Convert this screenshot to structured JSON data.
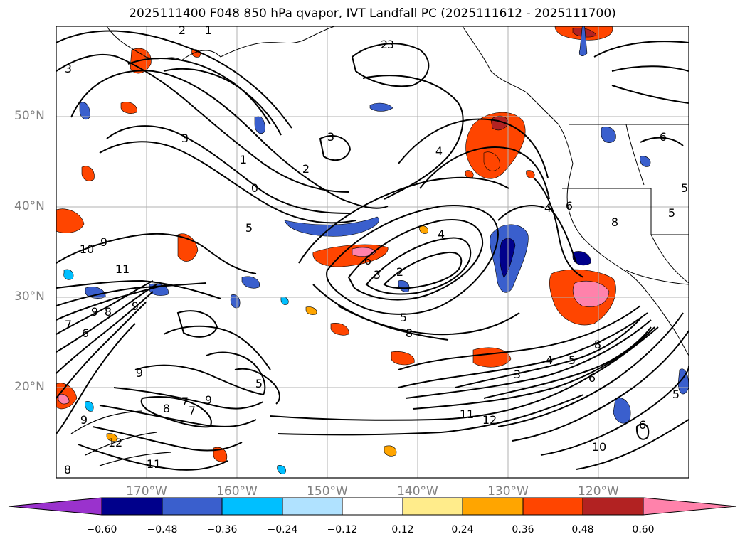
{
  "title": "2025111400 F048 850 hPa qvapor, IVT Landfall PC (2025111612 - 2025111700)",
  "lat_labels": [
    "50°N",
    "40°N",
    "30°N",
    "20°N"
  ],
  "lon_labels": [
    "170°W",
    "160°W",
    "150°W",
    "140°W",
    "130°W",
    "120°W"
  ],
  "colorbar": {
    "ticks": [
      "−0.60",
      "−0.48",
      "−0.36",
      "−0.24",
      "−0.12",
      "0.12",
      "0.24",
      "0.36",
      "0.48",
      "0.60"
    ],
    "colors": [
      "#9a32cd",
      "#00008b",
      "#3a5fcd",
      "#00bfff",
      "#b0e2ff",
      "#ffffff",
      "#ffec8b",
      "#ffa500",
      "#ff4500",
      "#b22222",
      "#ff82ab"
    ]
  },
  "contour_labels": [
    "3",
    "2",
    "1",
    "3",
    "2",
    "3",
    "1",
    "0",
    "2",
    "3",
    "4",
    "5",
    "6",
    "4",
    "5",
    "3",
    "2",
    "6",
    "9",
    "10",
    "11",
    "9",
    "8",
    "7",
    "6",
    "9",
    "12",
    "11",
    "8",
    "7",
    "9",
    "9",
    "8",
    "7",
    "9",
    "5",
    "8",
    "3",
    "4",
    "5",
    "6",
    "8",
    "11",
    "12",
    "10",
    "6",
    "5",
    "5",
    "5",
    "8",
    "6",
    "4"
  ]
}
